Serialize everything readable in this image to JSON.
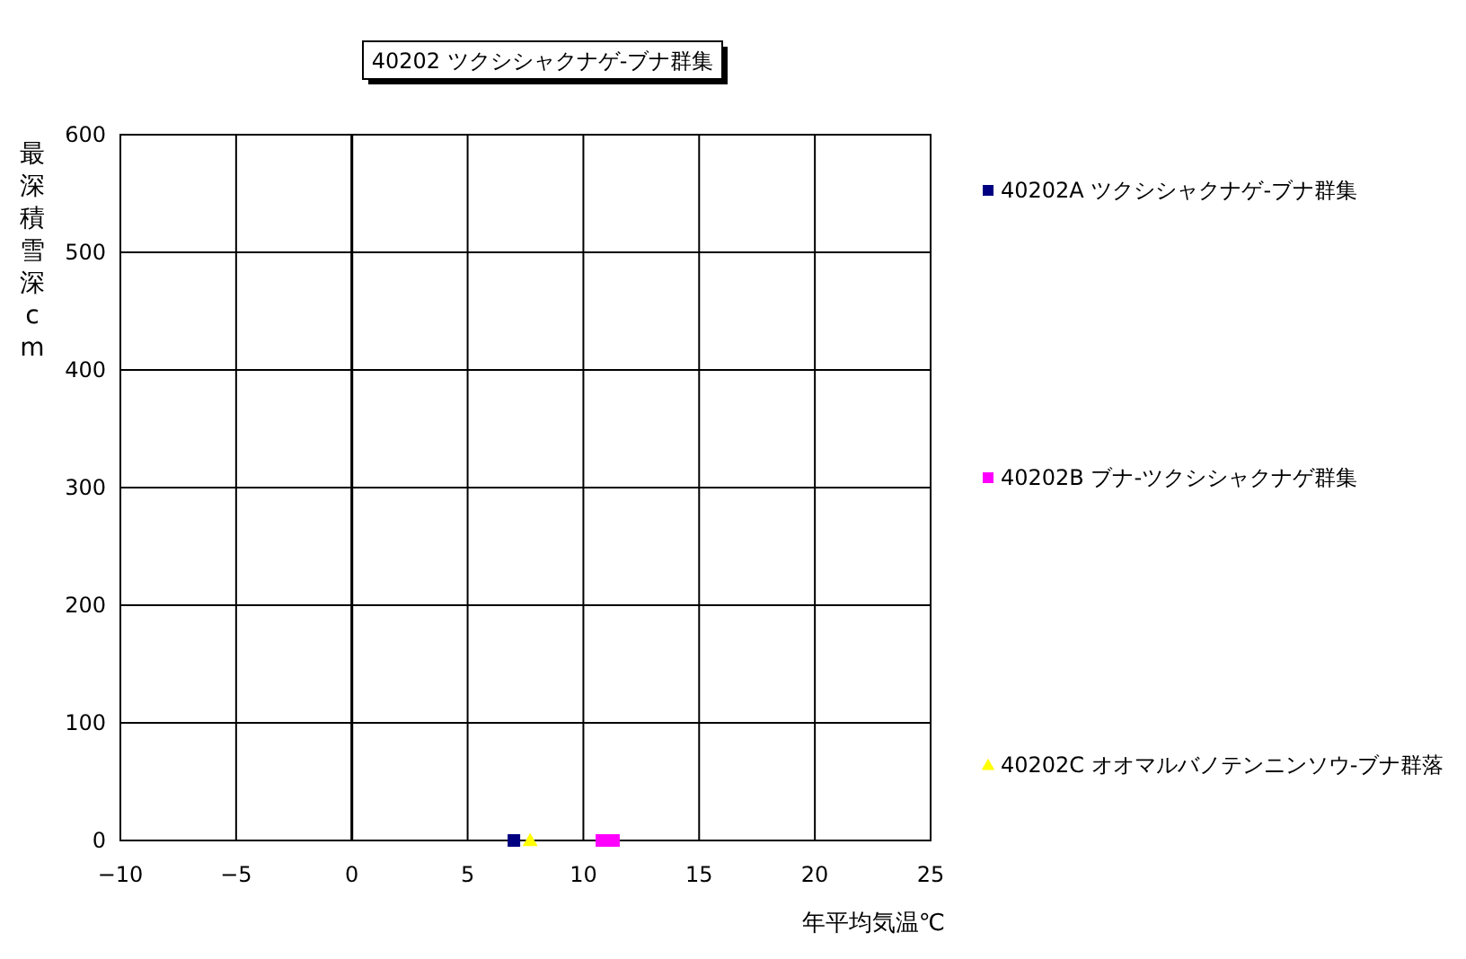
{
  "chart_data": {
    "type": "scatter",
    "title": "40202 ツクシシャクナゲ-ブナ群集",
    "xlabel": "年平均気温℃",
    "ylabel": "最深積雪深cm",
    "xlim": [
      -10,
      25
    ],
    "xticks": [
      -10,
      -5,
      0,
      5,
      10,
      15,
      20,
      25
    ],
    "ylim": [
      0,
      600
    ],
    "yticks": [
      0,
      100,
      200,
      300,
      400,
      500,
      600
    ],
    "grid": true,
    "legend": "right",
    "series": [
      {
        "name": "40202A ツクシシャクナゲ-ブナ群集",
        "color": "#000080",
        "marker": "square",
        "x": [
          7.0
        ],
        "values": [
          0
        ]
      },
      {
        "name": "40202B ブナ-ツクシシャクナゲ群集",
        "color": "#ff00ff",
        "marker": "square",
        "x": [
          10.8,
          11.3
        ],
        "values": [
          0,
          0
        ]
      },
      {
        "name": "40202C オオマルバノテンニンソウ-ブナ群落",
        "color": "#ffff00",
        "marker": "triangle",
        "x": [
          7.7
        ],
        "values": [
          0
        ]
      }
    ]
  }
}
